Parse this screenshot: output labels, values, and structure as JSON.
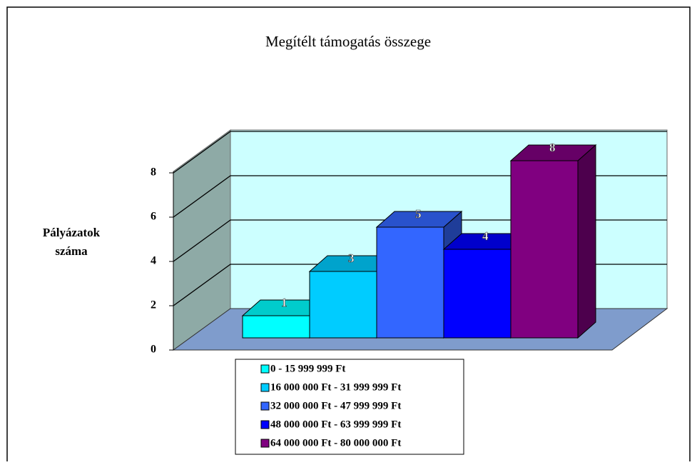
{
  "chart_data": {
    "type": "bar3d",
    "title": "Megítélt támogatás összege",
    "y_label": "Pályázatok száma",
    "series": [
      {
        "name": "0 - 15 999 999 Ft",
        "color": "#00ffff",
        "values": [
          1
        ]
      },
      {
        "name": "16 000 000 Ft - 31 999 999 Ft",
        "color": "#00ccff",
        "values": [
          3
        ]
      },
      {
        "name": "32 000 000 Ft - 47 999 999 Ft",
        "color": "#3366ff",
        "values": [
          5
        ]
      },
      {
        "name": "48 000 000 Ft - 63 999 999 Ft",
        "color": "#0000ff",
        "values": [
          4
        ]
      },
      {
        "name": "64 000 000 Ft - 80 000 000 Ft",
        "color": "#800080",
        "values": [
          8
        ]
      }
    ],
    "value_labels": [
      "1",
      "3",
      "5",
      "4",
      "8"
    ],
    "ylim": [
      0,
      8
    ],
    "yticks": [
      0,
      2,
      4,
      6,
      8
    ],
    "grid": true
  }
}
